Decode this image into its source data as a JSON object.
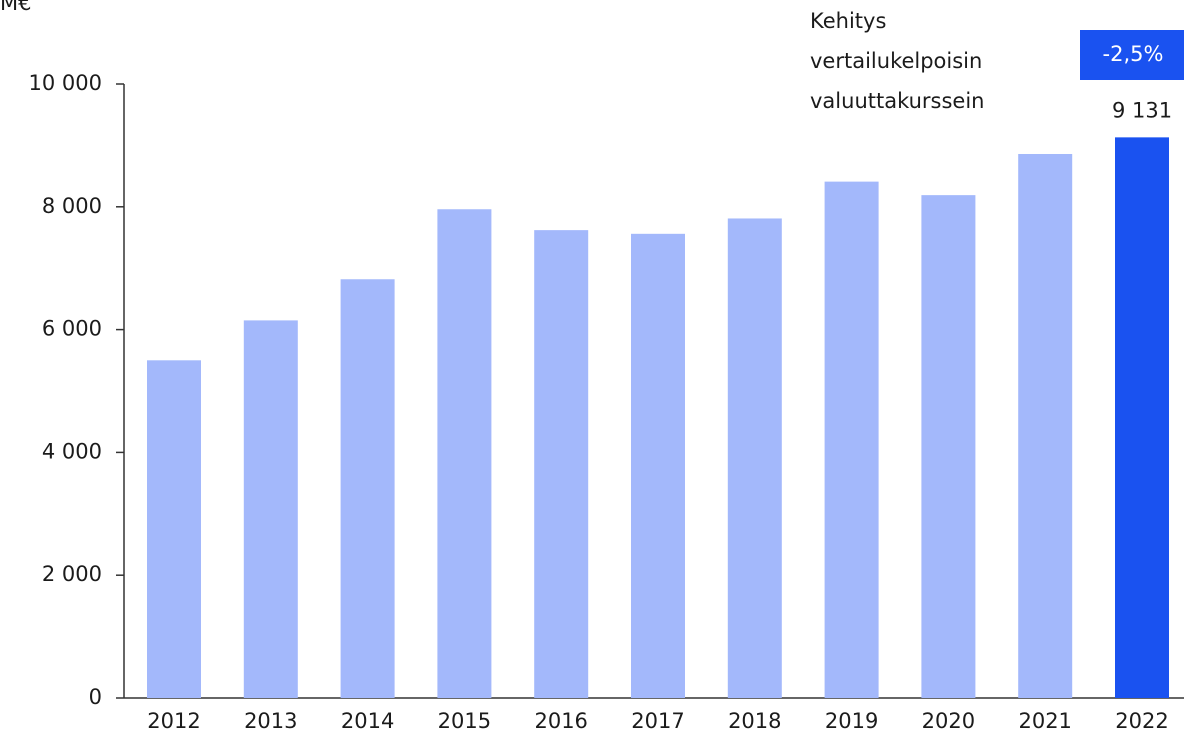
{
  "chart_data": {
    "type": "bar",
    "y_label": "M€",
    "categories": [
      "2012",
      "2013",
      "2014",
      "2015",
      "2016",
      "2017",
      "2018",
      "2019",
      "2020",
      "2021",
      "2022"
    ],
    "values": [
      5500,
      6150,
      6820,
      7960,
      7620,
      7560,
      7810,
      8410,
      8190,
      8860,
      9131
    ],
    "value_labels": [
      null,
      null,
      null,
      null,
      null,
      null,
      null,
      null,
      null,
      null,
      "9 131"
    ],
    "colors": [
      "#a3b8fb",
      "#a3b8fb",
      "#a3b8fb",
      "#a3b8fb",
      "#a3b8fb",
      "#a3b8fb",
      "#a3b8fb",
      "#a3b8fb",
      "#a3b8fb",
      "#a3b8fb",
      "#1a52f0"
    ],
    "ylim": [
      0,
      10000
    ],
    "yticks": [
      0,
      {
        "value": 2000,
        "label": "2 000"
      },
      {
        "value": 4000,
        "label": "4 000"
      },
      {
        "value": 6000,
        "label": "6 000"
      },
      {
        "value": 8000,
        "label": "8 000"
      },
      {
        "value": 10000,
        "label": "10 000"
      }
    ],
    "annotation": [
      "Kehitys",
      "vertailukelpoisin",
      "valuuttakurssein"
    ],
    "badge": "-2,5%",
    "badge_color": "#1a52f0"
  }
}
